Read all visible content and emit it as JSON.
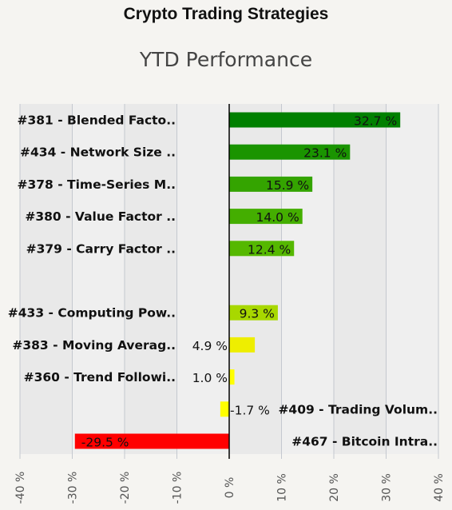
{
  "title": "Crypto Trading Strategies",
  "subtitle": "YTD Performance",
  "chart_data": {
    "type": "bar",
    "orientation": "horizontal",
    "title": "Crypto Trading Strategies",
    "subtitle": "YTD Performance",
    "xlim": [
      -40,
      40
    ],
    "x_ticks": [
      -40,
      -30,
      -20,
      -10,
      0,
      10,
      20,
      30,
      40
    ],
    "tick_labels": [
      "-40 %",
      "-30 %",
      "-20 %",
      "-10 %",
      "0 %",
      "10 %",
      "20 %",
      "30 %",
      "40 %"
    ],
    "grid": true,
    "bars": [
      {
        "label": "#381 - Blended Facto..",
        "value": 32.7,
        "value_label": "32.7 %",
        "color": "#008000"
      },
      {
        "label": "#434 - Network Size ..",
        "value": 23.1,
        "value_label": "23.1 %",
        "color": "#1a9400"
      },
      {
        "label": "#378 - Time-Series M..",
        "value": 15.9,
        "value_label": "15.9 %",
        "color": "#34a400"
      },
      {
        "label": "#380 - Value Factor ..",
        "value": 14.0,
        "value_label": "14.0 %",
        "color": "#44ae00"
      },
      {
        "label": "#379 - Carry Factor ..",
        "value": 12.4,
        "value_label": "12.4 %",
        "color": "#55b800"
      },
      {
        "label": "",
        "value": null,
        "value_label": "",
        "color": ""
      },
      {
        "label": "#433 - Computing Pow..",
        "value": 9.3,
        "value_label": "9.3 %",
        "color": "#a8d800"
      },
      {
        "label": "#383 - Moving Averag..",
        "value": 4.9,
        "value_label": "4.9 %",
        "color": "#eeee00"
      },
      {
        "label": "#360 - Trend Followi..",
        "value": 1.0,
        "value_label": "1.0 %",
        "color": "#ffff00"
      },
      {
        "label": "#409 - Trading Volum..",
        "value": -1.7,
        "value_label": "-1.7 %",
        "color": "#ffff00"
      },
      {
        "label": "#467 - Bitcoin Intra..",
        "value": -29.5,
        "value_label": "-29.5 %",
        "color": "#ff0000"
      }
    ]
  }
}
